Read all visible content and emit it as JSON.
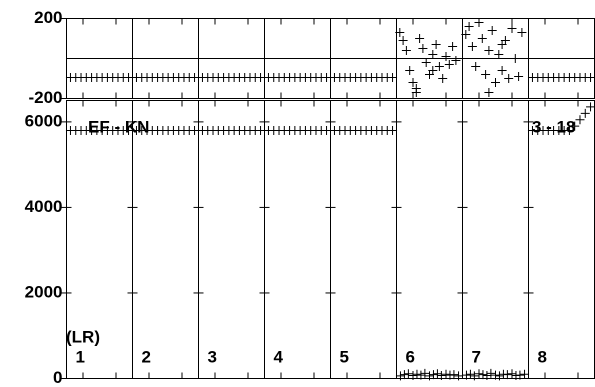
{
  "chart_data": [
    {
      "type": "scatter",
      "color": "#000000",
      "xlim": [
        0,
        8
      ],
      "ylim": [
        -200,
        200
      ],
      "yticks": [
        -200,
        200
      ],
      "x": [
        0.06,
        0.14,
        0.22,
        0.3,
        0.38,
        0.46,
        0.54,
        0.62,
        0.7,
        0.78,
        0.86,
        0.94,
        1.06,
        1.14,
        1.22,
        1.3,
        1.38,
        1.46,
        1.54,
        1.62,
        1.7,
        1.78,
        1.86,
        1.94,
        2.06,
        2.14,
        2.22,
        2.3,
        2.38,
        2.46,
        2.54,
        2.62,
        2.7,
        2.78,
        2.86,
        2.94,
        3.06,
        3.14,
        3.22,
        3.3,
        3.38,
        3.46,
        3.54,
        3.62,
        3.7,
        3.78,
        3.86,
        3.94,
        4.06,
        4.14,
        4.22,
        4.3,
        4.38,
        4.46,
        4.54,
        4.62,
        4.7,
        4.78,
        4.86,
        4.94,
        7.06,
        7.14,
        7.22,
        7.3,
        7.38,
        7.46,
        7.54,
        7.62,
        7.7,
        7.78,
        7.86,
        7.94,
        5.05,
        5.1,
        5.15,
        5.2,
        5.25,
        5.3,
        5.35,
        5.4,
        5.45,
        5.5,
        5.55,
        5.6,
        5.65,
        5.7,
        5.75,
        5.8,
        5.85,
        5.9,
        5.3,
        5.55,
        6.05,
        6.1,
        6.15,
        6.2,
        6.25,
        6.3,
        6.35,
        6.4,
        6.45,
        6.5,
        6.55,
        6.6,
        6.65,
        6.7,
        6.75,
        6.8,
        6.85,
        6.9,
        6.4,
        6.6
      ],
      "y": [
        -95,
        -95,
        -95,
        -95,
        -95,
        -95,
        -95,
        -95,
        -95,
        -95,
        -95,
        -95,
        -95,
        -95,
        -95,
        -95,
        -95,
        -95,
        -95,
        -95,
        -95,
        -95,
        -95,
        -95,
        -95,
        -95,
        -95,
        -95,
        -95,
        -95,
        -95,
        -95,
        -95,
        -95,
        -95,
        -95,
        -95,
        -95,
        -95,
        -95,
        -95,
        -95,
        -95,
        -95,
        -95,
        -95,
        -95,
        -95,
        -95,
        -95,
        -95,
        -95,
        -95,
        -95,
        -95,
        -95,
        -95,
        -95,
        -95,
        -95,
        -95,
        -95,
        -95,
        -95,
        -95,
        -95,
        -95,
        -95,
        -95,
        -95,
        -95,
        -95,
        130,
        90,
        40,
        -60,
        -120,
        -150,
        100,
        50,
        -20,
        -80,
        20,
        70,
        -40,
        -100,
        10,
        -30,
        60,
        -10,
        -170,
        -60,
        120,
        160,
        60,
        -40,
        180,
        100,
        -80,
        40,
        140,
        -120,
        20,
        -60,
        90,
        -100,
        150,
        0,
        -90,
        130,
        -170,
        70
      ]
    },
    {
      "type": "scatter",
      "color": "#000000",
      "xlim": [
        0,
        8
      ],
      "ylim": [
        0,
        6500
      ],
      "yticks": [
        0,
        2000,
        4000,
        6000
      ],
      "categories": [
        "1",
        "2",
        "3",
        "4",
        "5",
        "6",
        "7",
        "8"
      ],
      "annotations": [
        "(LR)",
        "EF - KN",
        "3 - 18"
      ],
      "x": [
        0.06,
        0.14,
        0.22,
        0.3,
        0.38,
        0.46,
        0.54,
        0.62,
        0.7,
        0.78,
        0.86,
        0.94,
        1.06,
        1.14,
        1.22,
        1.3,
        1.38,
        1.46,
        1.54,
        1.62,
        1.7,
        1.78,
        1.86,
        1.94,
        2.06,
        2.14,
        2.22,
        2.3,
        2.38,
        2.46,
        2.54,
        2.62,
        2.7,
        2.78,
        2.86,
        2.94,
        3.06,
        3.14,
        3.22,
        3.3,
        3.38,
        3.46,
        3.54,
        3.62,
        3.7,
        3.78,
        3.86,
        3.94,
        4.06,
        4.14,
        4.22,
        4.3,
        4.38,
        4.46,
        4.54,
        4.62,
        4.7,
        4.78,
        4.86,
        4.94,
        7.06,
        7.14,
        7.22,
        7.3,
        7.38,
        7.46,
        7.54,
        7.62,
        7.7,
        7.78,
        7.86,
        7.94,
        5.06,
        5.12,
        5.18,
        5.25,
        5.31,
        5.37,
        5.43,
        5.5,
        5.56,
        5.62,
        5.68,
        5.75,
        5.81,
        5.87,
        5.94,
        6.06,
        6.12,
        6.18,
        6.25,
        6.31,
        6.37,
        6.43,
        6.5,
        6.56,
        6.62,
        6.68,
        6.75,
        6.81,
        6.87,
        6.94
      ],
      "y": [
        5800,
        5800,
        5800,
        5800,
        5800,
        5800,
        5800,
        5800,
        5800,
        5800,
        5800,
        5800,
        5800,
        5800,
        5800,
        5800,
        5800,
        5800,
        5800,
        5800,
        5800,
        5800,
        5800,
        5800,
        5800,
        5800,
        5800,
        5800,
        5800,
        5800,
        5800,
        5800,
        5800,
        5800,
        5800,
        5800,
        5800,
        5800,
        5800,
        5800,
        5800,
        5800,
        5800,
        5800,
        5800,
        5800,
        5800,
        5800,
        5800,
        5800,
        5800,
        5800,
        5800,
        5800,
        5800,
        5800,
        5800,
        5800,
        5800,
        5800,
        5800,
        5800,
        5800,
        5800,
        5800,
        5800,
        5800,
        5800,
        5900,
        6050,
        6200,
        6350,
        60,
        90,
        110,
        70,
        100,
        80,
        120,
        60,
        90,
        110,
        70,
        100,
        80,
        90,
        60,
        80,
        100,
        60,
        110,
        90,
        70,
        120,
        80,
        60,
        100,
        90,
        110,
        70,
        80,
        100
      ]
    }
  ]
}
